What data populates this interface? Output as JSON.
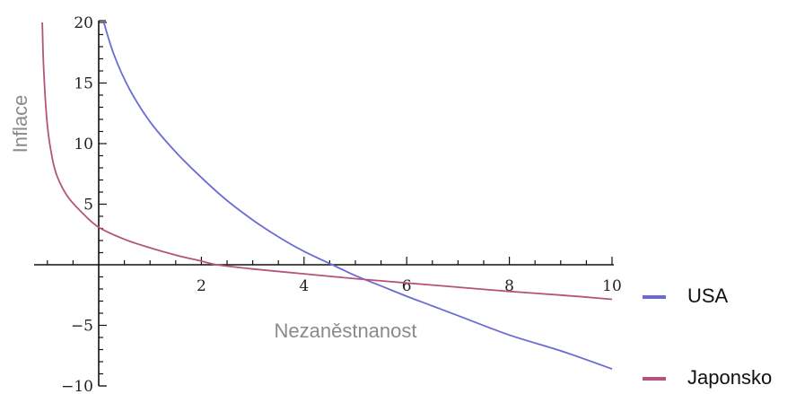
{
  "chart_data": {
    "type": "line",
    "title": "",
    "xlabel": "Nezaněstnanost",
    "ylabel": "Inflace",
    "xlim": [
      -1.28,
      10
    ],
    "ylim": [
      -10,
      20
    ],
    "x_ticks": [
      "2",
      "4",
      "6",
      "8",
      "10"
    ],
    "y_ticks": [
      "20",
      "15",
      "10",
      "5",
      "−5",
      "−10"
    ],
    "legend_position": "right",
    "series": [
      {
        "name": "USA",
        "color": "#6b6bd4",
        "x": [
          0.1,
          0.3,
          0.6,
          1.0,
          1.5,
          2.0,
          2.5,
          3.0,
          3.5,
          4.0,
          4.55,
          5.0,
          5.5,
          6.0,
          6.5,
          7.0,
          8.0,
          9.0,
          10.0
        ],
        "y": [
          20,
          17.3,
          14.5,
          11.8,
          9.3,
          7.2,
          5.3,
          3.7,
          2.3,
          1.1,
          0.0,
          -0.9,
          -1.75,
          -2.6,
          -3.4,
          -4.2,
          -5.8,
          -7.1,
          -8.6
        ]
      },
      {
        "name": "Japonsko",
        "color": "#b5537f",
        "x": [
          -1.1,
          -1.07,
          -1.0,
          -0.9,
          -0.8,
          -0.6,
          -0.3,
          0.0,
          0.5,
          1.0,
          1.5,
          2.0,
          2.3,
          3.0,
          4.0,
          5.0,
          6.0,
          7.0,
          8.0,
          9.0,
          10.0
        ],
        "y": [
          20,
          16.0,
          11.5,
          8.7,
          7.2,
          5.6,
          4.2,
          3.1,
          2.1,
          1.4,
          0.8,
          0.3,
          0.0,
          -0.35,
          -0.75,
          -1.15,
          -1.5,
          -1.85,
          -2.2,
          -2.5,
          -2.85
        ]
      }
    ]
  }
}
